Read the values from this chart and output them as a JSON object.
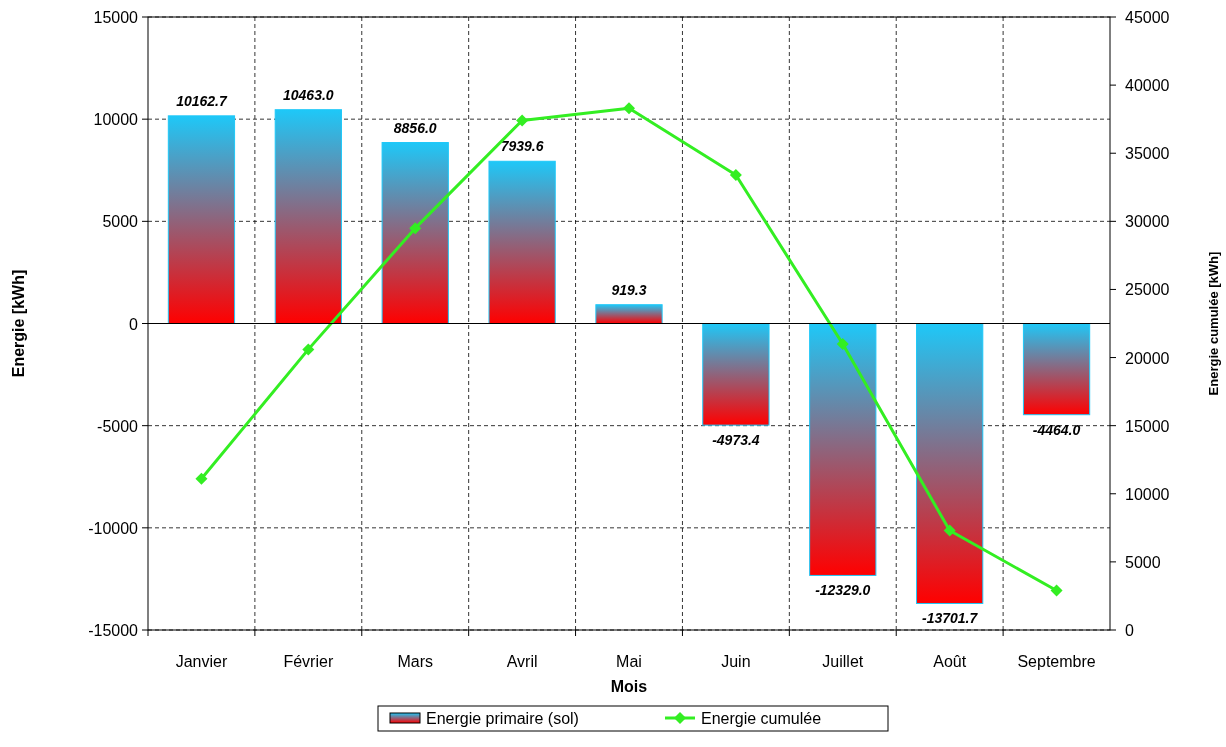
{
  "chart_data": {
    "type": "bar",
    "xlabel": "Mois",
    "ylabel": "Energie [kWh]",
    "y2label": "Energie cumulée [kWh]",
    "categories": [
      "Janvier",
      "Février",
      "Mars",
      "Avril",
      "Mai",
      "Juin",
      "Juillet",
      "Août",
      "Septembre"
    ],
    "series": [
      {
        "name": "Energie primaire (sol)",
        "color": "#1ec8f8",
        "values": [
          10162.7,
          10463,
          8856,
          7939.6,
          919.3,
          -4973.4,
          -12329,
          -13701.7,
          -4464
        ],
        "value_labels": [
          "10162.7",
          "10463.0",
          "8856.0",
          "7939.6",
          "919.3",
          "-4973.4",
          "-12329.0",
          "-13701.7",
          "-4464.0"
        ]
      },
      {
        "name": "Energie cumulée",
        "type": "line",
        "axis": "y2",
        "color": "#33ee22",
        "marker": "diamond",
        "values": [
          11100,
          20600,
          29500,
          37400,
          38300,
          33400,
          21000,
          7300,
          2900
        ]
      }
    ],
    "ylim": [
      -15000,
      15000
    ],
    "yticks": [
      -15000,
      -10000,
      -5000,
      0,
      5000,
      10000,
      15000
    ],
    "y2lim": [
      0,
      45000
    ],
    "y2ticks": [
      0,
      5000,
      10000,
      15000,
      20000,
      25000,
      30000,
      35000,
      40000,
      45000
    ],
    "grid": true,
    "legend": "bottom"
  }
}
